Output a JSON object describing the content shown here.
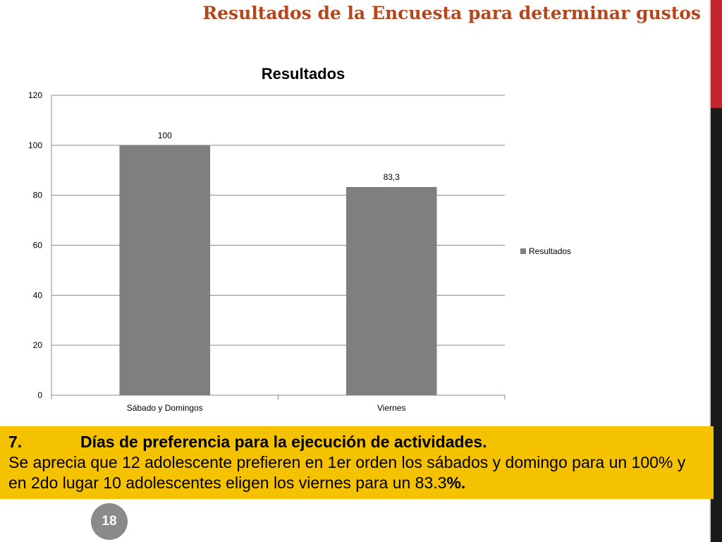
{
  "slide": {
    "title": "Resultados de la Encuesta para determinar gustos",
    "page_number": "18"
  },
  "callout": {
    "number": "7.",
    "heading": "Días de preferencia para la ejecución de actividades.",
    "body": "Se aprecia que 12 adolescente prefieren en 1er orden los sábados y domingo para un 100% y en 2do lugar 10 adolescentes eligen los viernes para un 83.3",
    "body_end": "%."
  },
  "colors": {
    "title": "#B5461C",
    "bar": "#7F7F7F",
    "callout_bg": "#F5C200",
    "accent_red": "#C0272D"
  },
  "chart_data": {
    "type": "bar",
    "title": "Resultados",
    "categories": [
      "Sábado y Domingos",
      "Viernes"
    ],
    "series": [
      {
        "name": "Resultados",
        "values": [
          100,
          83.3
        ],
        "labels": [
          "100",
          "83,3"
        ]
      }
    ],
    "ylim": [
      0,
      120
    ],
    "yticks": [
      0,
      20,
      40,
      60,
      80,
      100,
      120
    ],
    "grid": true,
    "legend": "right"
  }
}
